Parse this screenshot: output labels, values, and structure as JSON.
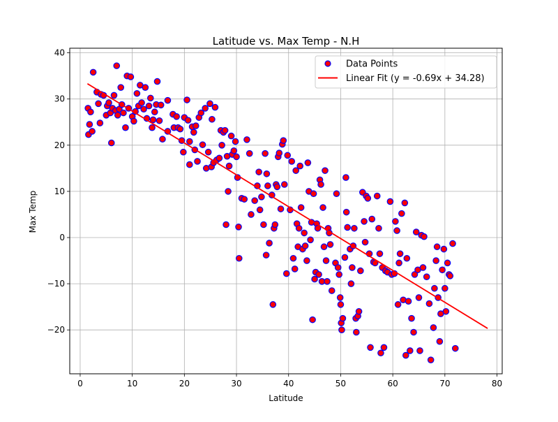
{
  "chart_data": {
    "type": "scatter",
    "title": "Latitude vs. Max Temp - N.H",
    "xlabel": "Latitude",
    "ylabel": "Max Temp",
    "xlim": [
      -2,
      81
    ],
    "ylim": [
      -29.5,
      41
    ],
    "xticks": [
      0,
      10,
      20,
      30,
      40,
      50,
      60,
      70,
      80
    ],
    "yticks": [
      -20,
      -10,
      0,
      10,
      20,
      30,
      40
    ],
    "grid": true,
    "legend_position": "top-right",
    "colors": {
      "marker_fill": "#ff0000",
      "marker_edge": "#0000ff",
      "fit_line": "#ff0000"
    },
    "series": [
      {
        "name": "Data Points",
        "kind": "scatter",
        "points": [
          [
            1.5,
            28
          ],
          [
            1.6,
            22.3
          ],
          [
            1.8,
            24.5
          ],
          [
            2.0,
            27.2
          ],
          [
            2.3,
            23
          ],
          [
            2.5,
            35.8
          ],
          [
            3.2,
            31.5
          ],
          [
            3.5,
            29
          ],
          [
            3.8,
            24.8
          ],
          [
            4.0,
            31
          ],
          [
            4.5,
            30.8
          ],
          [
            5.0,
            26.5
          ],
          [
            5.2,
            28.5
          ],
          [
            5.5,
            29.2
          ],
          [
            5.8,
            27
          ],
          [
            6.0,
            20.5
          ],
          [
            6.2,
            28
          ],
          [
            6.5,
            30.8
          ],
          [
            6.8,
            27.5
          ],
          [
            7.0,
            37.2
          ],
          [
            7.2,
            26.5
          ],
          [
            7.5,
            27.8
          ],
          [
            7.8,
            32.5
          ],
          [
            8.0,
            28.8
          ],
          [
            8.3,
            27
          ],
          [
            8.7,
            23.8
          ],
          [
            9.0,
            35
          ],
          [
            9.3,
            28
          ],
          [
            9.7,
            34.8
          ],
          [
            10.0,
            26.2
          ],
          [
            10.3,
            25.2
          ],
          [
            10.6,
            27.3
          ],
          [
            10.9,
            31.2
          ],
          [
            11.2,
            28.5
          ],
          [
            11.5,
            33
          ],
          [
            11.8,
            29.2
          ],
          [
            12.2,
            27.8
          ],
          [
            12.5,
            32.5
          ],
          [
            12.8,
            25.8
          ],
          [
            13.2,
            28.5
          ],
          [
            13.5,
            30.2
          ],
          [
            13.8,
            23.8
          ],
          [
            14.0,
            25.5
          ],
          [
            14.3,
            27.2
          ],
          [
            14.6,
            28.8
          ],
          [
            14.8,
            33.8
          ],
          [
            15.2,
            25.3
          ],
          [
            15.5,
            28.7
          ],
          [
            15.8,
            21.3
          ],
          [
            16.8,
            23
          ],
          [
            16.8,
            29.7
          ],
          [
            17.8,
            26.7
          ],
          [
            18.0,
            23.8
          ],
          [
            18.5,
            26.2
          ],
          [
            18.8,
            23.8
          ],
          [
            19.2,
            23.5
          ],
          [
            19.5,
            21
          ],
          [
            19.8,
            18.5
          ],
          [
            20.0,
            26
          ],
          [
            20.5,
            29.8
          ],
          [
            20.7,
            25.4
          ],
          [
            21.0,
            20.8
          ],
          [
            21.0,
            15.8
          ],
          [
            21.5,
            24
          ],
          [
            21.8,
            22.8
          ],
          [
            22.0,
            19
          ],
          [
            22.2,
            24.2
          ],
          [
            22.5,
            16.5
          ],
          [
            22.8,
            26
          ],
          [
            23.2,
            27
          ],
          [
            23.5,
            20.1
          ],
          [
            24.0,
            28
          ],
          [
            24.2,
            15
          ],
          [
            24.6,
            18.5
          ],
          [
            24.9,
            29
          ],
          [
            25.2,
            15.3
          ],
          [
            25.3,
            25.6
          ],
          [
            25.6,
            16.2
          ],
          [
            25.9,
            28.2
          ],
          [
            26.2,
            16.8
          ],
          [
            26.7,
            17.2
          ],
          [
            27.0,
            23.2
          ],
          [
            27.2,
            20
          ],
          [
            27.5,
            22.8
          ],
          [
            27.8,
            23.2
          ],
          [
            28.0,
            2.8
          ],
          [
            28.2,
            17.6
          ],
          [
            28.4,
            10
          ],
          [
            28.6,
            15.5
          ],
          [
            29.0,
            22
          ],
          [
            29.2,
            18
          ],
          [
            29.5,
            18.8
          ],
          [
            29.8,
            20.8
          ],
          [
            30.0,
            17.5
          ],
          [
            30.2,
            13
          ],
          [
            30.4,
            2.3
          ],
          [
            30.5,
            -4.5
          ],
          [
            31.0,
            8.5
          ],
          [
            31.5,
            8.3
          ],
          [
            32.0,
            21.2
          ],
          [
            32.5,
            18.2
          ],
          [
            32.8,
            5
          ],
          [
            33.5,
            8
          ],
          [
            34.0,
            11.2
          ],
          [
            34.3,
            14.2
          ],
          [
            34.5,
            6
          ],
          [
            34.8,
            8.8
          ],
          [
            35.2,
            2.8
          ],
          [
            35.5,
            18.2
          ],
          [
            35.7,
            -3.8
          ],
          [
            35.8,
            13.8
          ],
          [
            36.0,
            11.2
          ],
          [
            36.3,
            -1.2
          ],
          [
            36.8,
            9.2
          ],
          [
            37.0,
            -14.5
          ],
          [
            37.2,
            2
          ],
          [
            37.4,
            2.8
          ],
          [
            37.6,
            11.5
          ],
          [
            37.8,
            11
          ],
          [
            38.0,
            17.5
          ],
          [
            38.2,
            18.3
          ],
          [
            38.5,
            6.2
          ],
          [
            38.8,
            20.2
          ],
          [
            39.0,
            21
          ],
          [
            39.2,
            11.5
          ],
          [
            39.6,
            -7.8
          ],
          [
            39.8,
            17.8
          ],
          [
            40.3,
            6
          ],
          [
            40.6,
            16.5
          ],
          [
            40.9,
            -4.5
          ],
          [
            41.2,
            -6.8
          ],
          [
            41.4,
            14.5
          ],
          [
            41.6,
            3
          ],
          [
            41.8,
            -2
          ],
          [
            42.0,
            2
          ],
          [
            42.2,
            15.5
          ],
          [
            42.4,
            6.5
          ],
          [
            42.7,
            -2.5
          ],
          [
            43.0,
            1
          ],
          [
            43.2,
            -1.8
          ],
          [
            43.5,
            -5
          ],
          [
            43.7,
            16.2
          ],
          [
            43.9,
            10
          ],
          [
            44.2,
            -0.5
          ],
          [
            44.4,
            3.3
          ],
          [
            44.6,
            -17.8
          ],
          [
            44.8,
            9.5
          ],
          [
            45.0,
            -9
          ],
          [
            45.2,
            -7.5
          ],
          [
            45.4,
            3
          ],
          [
            45.6,
            2
          ],
          [
            45.8,
            -8
          ],
          [
            46.0,
            12.5
          ],
          [
            46.2,
            11.5
          ],
          [
            46.4,
            -9.5
          ],
          [
            46.6,
            6.5
          ],
          [
            46.8,
            -2
          ],
          [
            47.0,
            14.5
          ],
          [
            47.2,
            -5
          ],
          [
            47.4,
            -9.5
          ],
          [
            47.6,
            2
          ],
          [
            47.8,
            1
          ],
          [
            48.0,
            -1.5
          ],
          [
            48.3,
            -11.5
          ],
          [
            49.0,
            -5.5
          ],
          [
            49.2,
            9.5
          ],
          [
            49.5,
            -6.5
          ],
          [
            49.7,
            -8
          ],
          [
            49.9,
            -13
          ],
          [
            50.0,
            -14.5
          ],
          [
            50.1,
            -18.5
          ],
          [
            50.2,
            -20
          ],
          [
            50.4,
            -17.5
          ],
          [
            50.8,
            -4.3
          ],
          [
            51.0,
            13
          ],
          [
            51.1,
            5.5
          ],
          [
            51.3,
            2.2
          ],
          [
            51.8,
            -2.5
          ],
          [
            52.0,
            -10
          ],
          [
            52.2,
            -6.5
          ],
          [
            52.4,
            -1.8
          ],
          [
            52.6,
            2
          ],
          [
            52.9,
            -17.5
          ],
          [
            53.0,
            -20.5
          ],
          [
            53.3,
            -17
          ],
          [
            53.5,
            -16
          ],
          [
            53.8,
            -7.2
          ],
          [
            54.2,
            9.8
          ],
          [
            54.5,
            3.5
          ],
          [
            54.7,
            -1
          ],
          [
            54.9,
            9
          ],
          [
            55.2,
            8.5
          ],
          [
            55.5,
            -3.5
          ],
          [
            55.7,
            -23.8
          ],
          [
            56.0,
            4
          ],
          [
            56.3,
            -5.3
          ],
          [
            56.6,
            -5.5
          ],
          [
            57.0,
            9
          ],
          [
            57.3,
            2
          ],
          [
            57.5,
            -3.5
          ],
          [
            57.7,
            -25
          ],
          [
            58.0,
            -6.5
          ],
          [
            58.3,
            -23.8
          ],
          [
            58.6,
            -7.2
          ],
          [
            59.0,
            -7.5
          ],
          [
            59.5,
            7.8
          ],
          [
            59.8,
            -8
          ],
          [
            60.3,
            -7.8
          ],
          [
            60.5,
            3.5
          ],
          [
            60.8,
            1.5
          ],
          [
            61.0,
            -14.5
          ],
          [
            61.2,
            -5.5
          ],
          [
            61.4,
            -3.5
          ],
          [
            61.7,
            5.2
          ],
          [
            62.0,
            -13.5
          ],
          [
            62.3,
            7.5
          ],
          [
            62.5,
            -25.5
          ],
          [
            62.7,
            -4.5
          ],
          [
            63.0,
            -13.8
          ],
          [
            63.3,
            -24.5
          ],
          [
            63.6,
            -17.5
          ],
          [
            64.0,
            -20.5
          ],
          [
            64.2,
            -8
          ],
          [
            64.5,
            1.2
          ],
          [
            64.8,
            -7
          ],
          [
            65.0,
            -13
          ],
          [
            65.2,
            -24.5
          ],
          [
            65.5,
            0.5
          ],
          [
            65.8,
            -6.5
          ],
          [
            66.0,
            0.2
          ],
          [
            66.5,
            -8.5
          ],
          [
            67.0,
            -14.3
          ],
          [
            67.3,
            -26.5
          ],
          [
            67.8,
            -19.5
          ],
          [
            68.0,
            -11
          ],
          [
            68.3,
            -5
          ],
          [
            68.5,
            -2
          ],
          [
            68.7,
            -13
          ],
          [
            69.0,
            -22.5
          ],
          [
            69.2,
            -16.5
          ],
          [
            69.5,
            -7
          ],
          [
            69.8,
            -2.5
          ],
          [
            70.0,
            -11
          ],
          [
            70.2,
            -16
          ],
          [
            70.5,
            -5.5
          ],
          [
            70.8,
            -8
          ],
          [
            71.0,
            -8.3
          ],
          [
            71.5,
            -1.3
          ],
          [
            72.0,
            -24
          ]
        ]
      },
      {
        "name": "Linear Fit (y = -0.69x + 34.28)",
        "kind": "line",
        "slope": -0.69,
        "intercept": 34.28,
        "x_range": [
          1.4,
          78.2
        ]
      }
    ]
  }
}
